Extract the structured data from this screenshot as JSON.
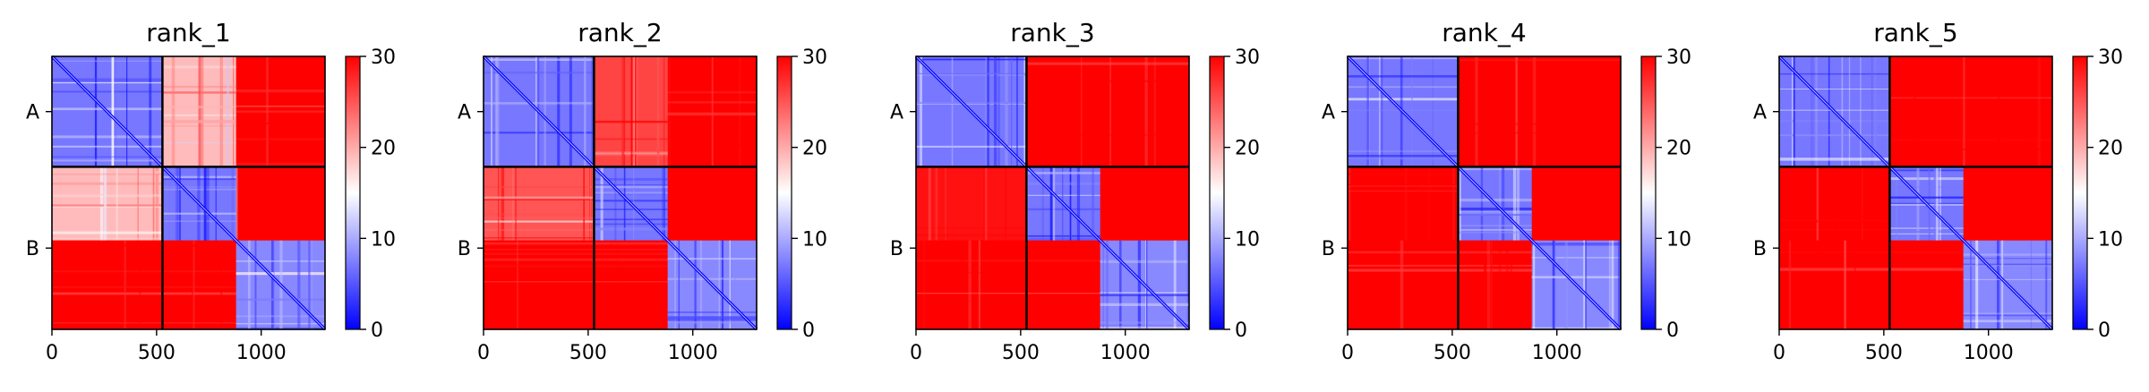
{
  "chart_data": [
    {
      "type": "heatmap",
      "title": "rank_1",
      "chains": [
        {
          "label": "A",
          "start": 0,
          "end": 528
        },
        {
          "label": "B",
          "start": 528,
          "end": 1305
        }
      ],
      "x_ticks": [
        0,
        500,
        1000
      ],
      "x_tick_labels": [
        "0",
        "500",
        "1000"
      ],
      "xlim": [
        0,
        1305
      ],
      "colorbar": {
        "min": 0,
        "max": 30,
        "ticks": [
          0,
          10,
          20,
          30
        ],
        "tick_labels": [
          "0",
          "10",
          "20",
          "30"
        ],
        "colormap": "bwr"
      },
      "blocks": [
        {
          "rows": [
            0,
            528
          ],
          "cols": [
            0,
            528
          ],
          "value": 7
        },
        {
          "rows": [
            0,
            528
          ],
          "cols": [
            528,
            1305
          ],
          "value": 30
        },
        {
          "rows": [
            0,
            528
          ],
          "cols": [
            528,
            880
          ],
          "value": 19
        },
        {
          "rows": [
            528,
            880
          ],
          "cols": [
            0,
            528
          ],
          "value": 19
        },
        {
          "rows": [
            528,
            880
          ],
          "cols": [
            528,
            880
          ],
          "value": 7
        },
        {
          "rows": [
            880,
            1305
          ],
          "cols": [
            0,
            880
          ],
          "value": 30
        },
        {
          "rows": [
            880,
            1305
          ],
          "cols": [
            880,
            1305
          ],
          "value": 8
        }
      ]
    },
    {
      "type": "heatmap",
      "title": "rank_2",
      "chains": [
        {
          "label": "A",
          "start": 0,
          "end": 528
        },
        {
          "label": "B",
          "start": 528,
          "end": 1305
        }
      ],
      "x_ticks": [
        0,
        500,
        1000
      ],
      "x_tick_labels": [
        "0",
        "500",
        "1000"
      ],
      "xlim": [
        0,
        1305
      ],
      "colorbar": {
        "min": 0,
        "max": 30,
        "ticks": [
          0,
          10,
          20,
          30
        ],
        "tick_labels": [
          "0",
          "10",
          "20",
          "30"
        ],
        "colormap": "bwr"
      },
      "blocks": [
        {
          "rows": [
            0,
            528
          ],
          "cols": [
            0,
            528
          ],
          "value": 7
        },
        {
          "rows": [
            0,
            528
          ],
          "cols": [
            528,
            1305
          ],
          "value": 30
        },
        {
          "rows": [
            0,
            528
          ],
          "cols": [
            528,
            880
          ],
          "value": 26
        },
        {
          "rows": [
            528,
            880
          ],
          "cols": [
            0,
            528
          ],
          "value": 25
        },
        {
          "rows": [
            528,
            880
          ],
          "cols": [
            528,
            880
          ],
          "value": 7
        },
        {
          "rows": [
            880,
            1305
          ],
          "cols": [
            0,
            880
          ],
          "value": 30
        },
        {
          "rows": [
            880,
            1305
          ],
          "cols": [
            880,
            1305
          ],
          "value": 8
        }
      ]
    },
    {
      "type": "heatmap",
      "title": "rank_3",
      "chains": [
        {
          "label": "A",
          "start": 0,
          "end": 528
        },
        {
          "label": "B",
          "start": 528,
          "end": 1305
        }
      ],
      "x_ticks": [
        0,
        500,
        1000
      ],
      "x_tick_labels": [
        "0",
        "500",
        "1000"
      ],
      "xlim": [
        0,
        1305
      ],
      "colorbar": {
        "min": 0,
        "max": 30,
        "ticks": [
          0,
          10,
          20,
          30
        ],
        "tick_labels": [
          "0",
          "10",
          "20",
          "30"
        ],
        "colormap": "bwr"
      },
      "blocks": [
        {
          "rows": [
            0,
            528
          ],
          "cols": [
            0,
            528
          ],
          "value": 7
        },
        {
          "rows": [
            0,
            528
          ],
          "cols": [
            528,
            1305
          ],
          "value": 30
        },
        {
          "rows": [
            528,
            880
          ],
          "cols": [
            0,
            528
          ],
          "value": 29
        },
        {
          "rows": [
            528,
            880
          ],
          "cols": [
            528,
            880
          ],
          "value": 7
        },
        {
          "rows": [
            880,
            1305
          ],
          "cols": [
            0,
            880
          ],
          "value": 30
        },
        {
          "rows": [
            880,
            1305
          ],
          "cols": [
            880,
            1305
          ],
          "value": 8
        }
      ]
    },
    {
      "type": "heatmap",
      "title": "rank_4",
      "chains": [
        {
          "label": "A",
          "start": 0,
          "end": 528
        },
        {
          "label": "B",
          "start": 528,
          "end": 1305
        }
      ],
      "x_ticks": [
        0,
        500,
        1000
      ],
      "x_tick_labels": [
        "0",
        "500",
        "1000"
      ],
      "xlim": [
        0,
        1305
      ],
      "colorbar": {
        "min": 0,
        "max": 30,
        "ticks": [
          0,
          10,
          20,
          30
        ],
        "tick_labels": [
          "0",
          "10",
          "20",
          "30"
        ],
        "colormap": "bwr"
      },
      "blocks": [
        {
          "rows": [
            0,
            528
          ],
          "cols": [
            0,
            528
          ],
          "value": 7
        },
        {
          "rows": [
            0,
            528
          ],
          "cols": [
            528,
            1305
          ],
          "value": 30
        },
        {
          "rows": [
            528,
            880
          ],
          "cols": [
            0,
            528
          ],
          "value": 30
        },
        {
          "rows": [
            528,
            880
          ],
          "cols": [
            528,
            880
          ],
          "value": 7
        },
        {
          "rows": [
            880,
            1305
          ],
          "cols": [
            0,
            880
          ],
          "value": 30
        },
        {
          "rows": [
            880,
            1305
          ],
          "cols": [
            880,
            1305
          ],
          "value": 8
        }
      ]
    },
    {
      "type": "heatmap",
      "title": "rank_5",
      "chains": [
        {
          "label": "A",
          "start": 0,
          "end": 528
        },
        {
          "label": "B",
          "start": 528,
          "end": 1305
        }
      ],
      "x_ticks": [
        0,
        500,
        1000
      ],
      "x_tick_labels": [
        "0",
        "500",
        "1000"
      ],
      "xlim": [
        0,
        1305
      ],
      "colorbar": {
        "min": 0,
        "max": 30,
        "ticks": [
          0,
          10,
          20,
          30
        ],
        "tick_labels": [
          "0",
          "10",
          "20",
          "30"
        ],
        "colormap": "bwr"
      },
      "blocks": [
        {
          "rows": [
            0,
            528
          ],
          "cols": [
            0,
            528
          ],
          "value": 7
        },
        {
          "rows": [
            0,
            528
          ],
          "cols": [
            528,
            1305
          ],
          "value": 30
        },
        {
          "rows": [
            528,
            880
          ],
          "cols": [
            0,
            528
          ],
          "value": 30
        },
        {
          "rows": [
            528,
            880
          ],
          "cols": [
            528,
            880
          ],
          "value": 7
        },
        {
          "rows": [
            880,
            1305
          ],
          "cols": [
            0,
            880
          ],
          "value": 30
        },
        {
          "rows": [
            880,
            1305
          ],
          "cols": [
            880,
            1305
          ],
          "value": 8
        }
      ]
    }
  ]
}
